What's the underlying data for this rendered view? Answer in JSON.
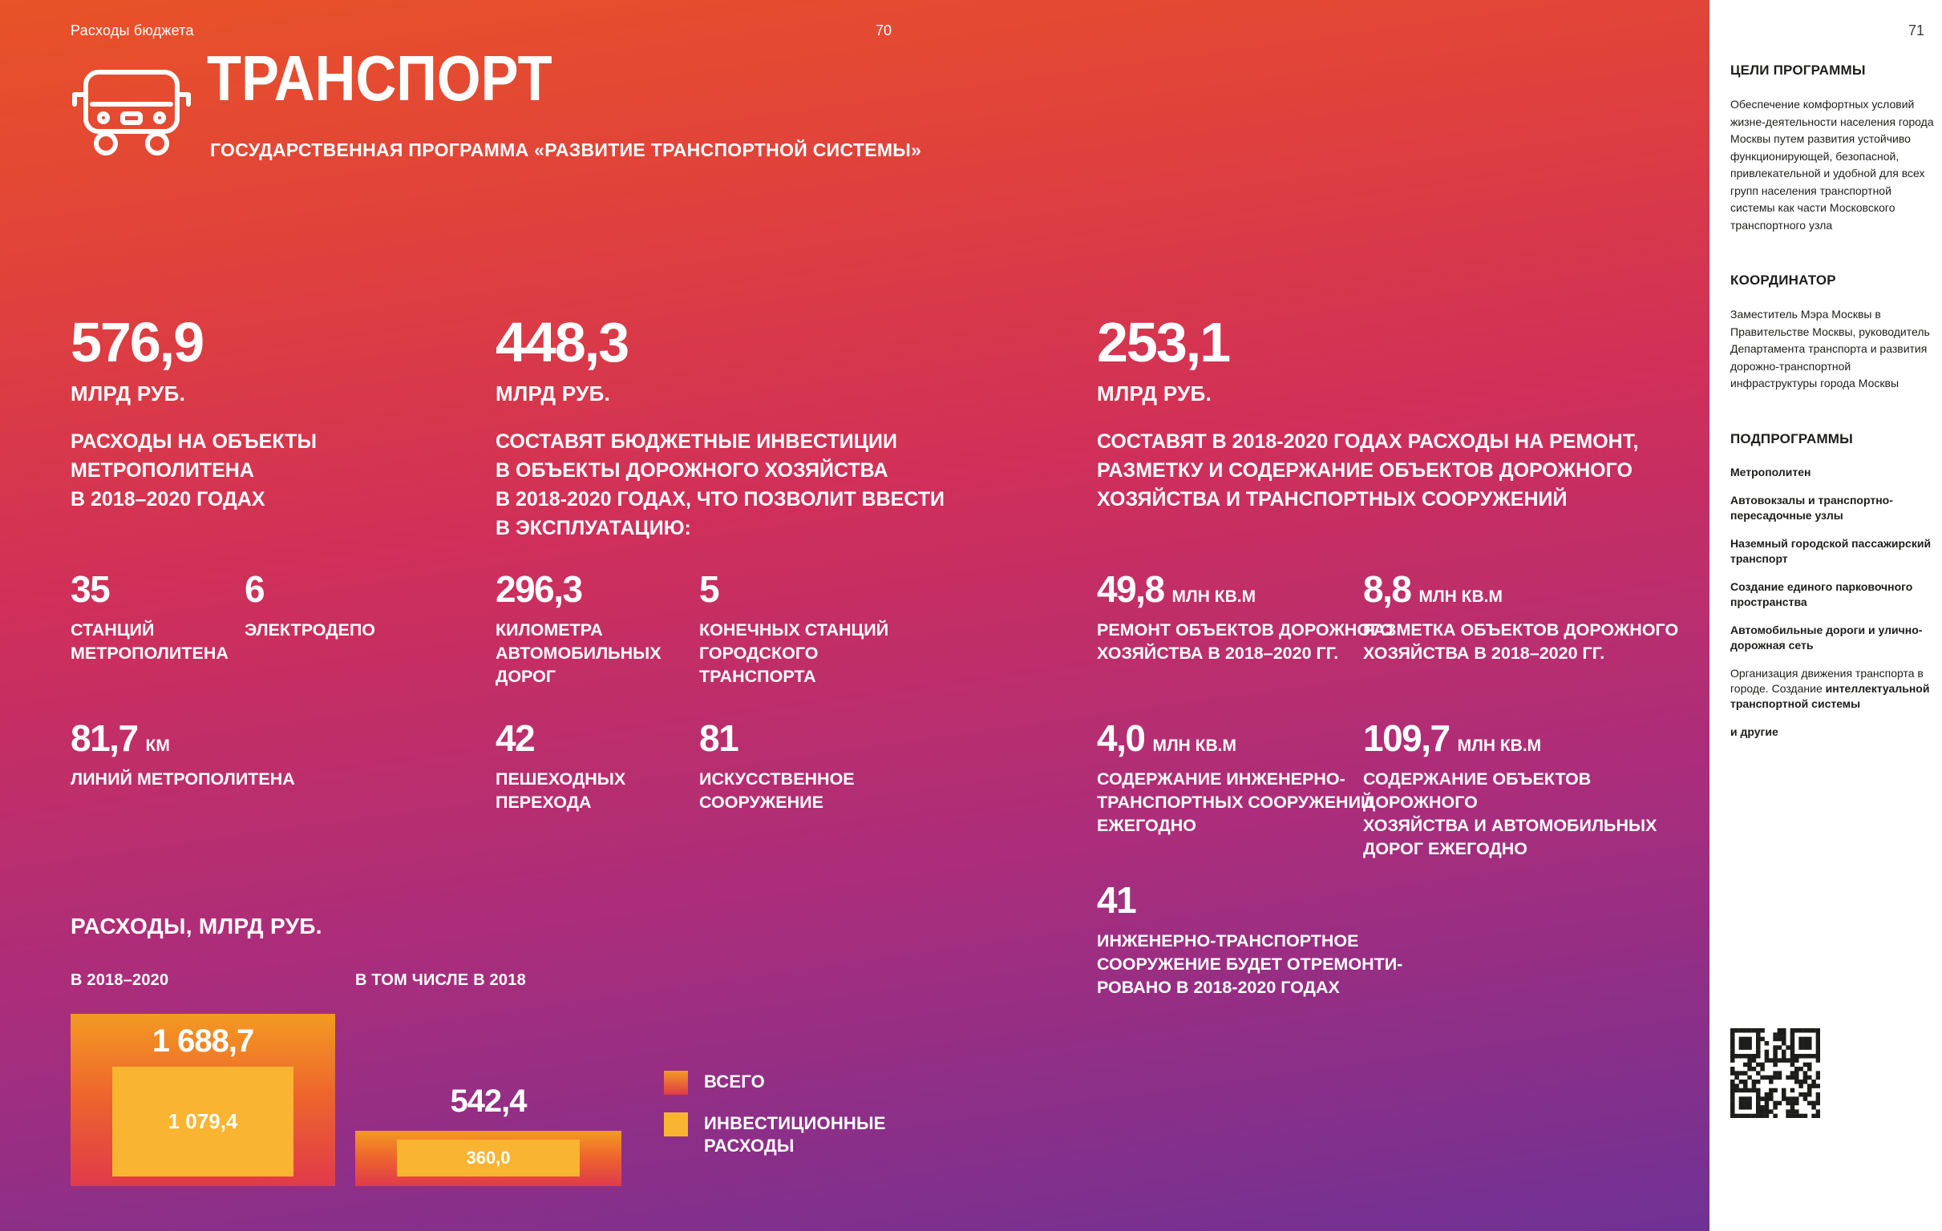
{
  "page_left": {
    "breadcrumb": "Расходы бюджета",
    "page_number": "70",
    "title": "ТРАНСПОРТ",
    "subtitle": "ГОСУДАРСТВЕННАЯ ПРОГРАММА «РАЗВИТИЕ ТРАНСПОРТНОЙ СИСТЕМЫ»",
    "big_stats": [
      {
        "value": "576,9",
        "unit": "МЛРД РУБ.",
        "desc": "РАСХОДЫ НА ОБЪЕКТЫ\nМЕТРОПОЛИТЕНА\nВ 2018–2020 ГОДАХ"
      },
      {
        "value": "448,3",
        "unit": "МЛРД РУБ.",
        "desc": "СОСТАВЯТ БЮДЖЕТНЫЕ ИНВЕСТИЦИИ\nВ ОБЪЕКТЫ ДОРОЖНОГО ХОЗЯЙСТВА\nВ 2018-2020 ГОДАХ, ЧТО ПОЗВОЛИТ ВВЕСТИ\nВ ЭКСПЛУАТАЦИЮ:"
      },
      {
        "value": "253,1",
        "unit": "МЛРД РУБ.",
        "desc": "СОСТАВЯТ В 2018-2020 ГОДАХ РАСХОДЫ НА РЕМОНТ,\nРАЗМЕТКУ И СОДЕРЖАНИЕ ОБЪЕКТОВ ДОРОЖНОГО\nХОЗЯЙСТВА И ТРАНСПОРТНЫХ СООРУЖЕНИЙ"
      }
    ],
    "stats": [
      {
        "value": "35",
        "label": "СТАНЦИЙ\nМЕТРОПОЛИТЕНА"
      },
      {
        "value": "6",
        "label": "ЭЛЕКТРОДЕПО"
      },
      {
        "value": "296,3",
        "label": "КИЛОМЕТРА\nАВТОМОБИЛЬНЫХ\nДОРОГ"
      },
      {
        "value": "5",
        "label": "КОНЕЧНЫХ СТАНЦИЙ\nГОРОДСКОГО\nТРАНСПОРТА"
      },
      {
        "value": "49,8",
        "unit": "МЛН КВ.М",
        "label": "РЕМОНТ ОБЪЕКТОВ ДОРОЖНОГО\nХОЗЯЙСТВА В 2018–2020 ГГ."
      },
      {
        "value": "8,8",
        "unit": "МЛН КВ.М",
        "label": "РАЗМЕТКА ОБЪЕКТОВ ДОРОЖНОГО\nХОЗЯЙСТВА В 2018–2020 ГГ."
      },
      {
        "value": "81,7",
        "unit": "КМ",
        "label": "ЛИНИЙ МЕТРОПОЛИТЕНА"
      },
      {
        "value": "42",
        "label": "ПЕШЕХОДНЫХ\nПЕРЕХОДА"
      },
      {
        "value": "81",
        "label": "ИСКУССТВЕННОЕ\nСООРУЖЕНИЕ"
      },
      {
        "value": "4,0",
        "unit": "МЛН КВ.М",
        "label": "СОДЕРЖАНИЕ ИНЖЕНЕРНО-\nТРАНСПОРТНЫХ СООРУЖЕНИЙ\nЕЖЕГОДНО"
      },
      {
        "value": "109,7",
        "unit": "МЛН КВ.М",
        "label": "СОДЕРЖАНИЕ ОБЪЕКТОВ ДОРОЖНОГО\nХОЗЯЙСТВА И АВТОМОБИЛЬНЫХ\nДОРОГ ЕЖЕГОДНО"
      },
      {
        "value": "41",
        "label": "ИНЖЕНЕРНО-ТРАНСПОРТНОЕ\nСООРУЖЕНИЕ БУДЕТ ОТРЕМОНТИ-\nРОВАНО В 2018-2020 ГОДАХ"
      }
    ]
  },
  "chart_data": {
    "type": "bar",
    "title": "РАСХОДЫ, МЛРД РУБ.",
    "xlabel": "",
    "ylabel": "МЛРД РУБ.",
    "grid": false,
    "legend_position": "right",
    "groups": [
      {
        "label": "В 2018–2020",
        "total": 1688.7,
        "total_label": "1 688,7",
        "investment": 1079.4,
        "investment_label": "1 079,4"
      },
      {
        "label": "В ТОМ ЧИСЛЕ В 2018",
        "total": 542.4,
        "total_label": "542,4",
        "investment": 360.0,
        "investment_label": "360,0"
      }
    ],
    "legend": [
      {
        "label": "ВСЕГО",
        "color": "#ed652d"
      },
      {
        "label": "ИНВЕСТИЦИОННЫЕ\nРАСХОДЫ",
        "color": "#f9b432"
      }
    ],
    "colors": {
      "total_gradient_top": "#f39a22",
      "total_gradient_bottom": "#e03a4a",
      "investment": "#f9b432"
    }
  },
  "page_right": {
    "page_number": "71",
    "goals_heading": "ЦЕЛИ ПРОГРАММЫ",
    "goals_text": "Обеспечение комфортных условий жизне-деятельности населения города Москвы путем развития устойчиво функционирующей, безопасной, привлекательной и удобной для всех групп населения транспортной системы как части Московского транспортного узла",
    "coordinator_heading": "КООРДИНАТОР",
    "coordinator_text": "Заместитель Мэра Москвы в Правительстве Москвы, руководитель Департамента транспорта и развития дорожно-транспортной инфраструктуры города Москвы",
    "subprograms_heading": "ПОДПРОГРАММЫ",
    "subprograms": [
      "Метрополитен",
      "Автовокзалы и транспортно-пересадочные узлы",
      "Наземный городской пассажирский транспорт",
      "Создание единого парковочного пространства",
      "Автомобильные дороги и улично-дорожная сеть"
    ],
    "subprogram_mixed": {
      "regular": "Организация движения транспорта в городе. Создание ",
      "bold": "интеллектуальной транспортной системы"
    },
    "subprograms_last": "и другие"
  }
}
